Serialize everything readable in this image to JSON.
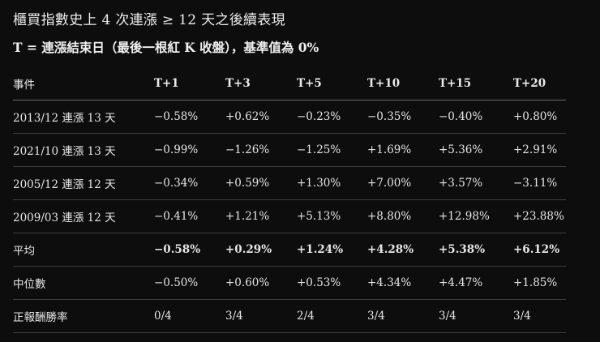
{
  "title": "櫃買指數史上 4 次連漲 ≥ 12 天之後續表現",
  "subtitle": "T = 連漲結束日（最後一根紅 K 收盤），基準值為 0%",
  "table": {
    "headers": [
      "事件",
      "T+1",
      "T+3",
      "T+5",
      "T+10",
      "T+15",
      "T+20"
    ],
    "rows": [
      {
        "event": "2013/12 連漲 13 天",
        "values": [
          "−0.58%",
          "+0.62%",
          "−0.23%",
          "−0.35%",
          "−0.40%",
          "+0.80%"
        ]
      },
      {
        "event": "2021/10 連漲 13 天",
        "values": [
          "−0.99%",
          "−1.26%",
          "−1.25%",
          "+1.69%",
          "+5.36%",
          "+2.91%"
        ]
      },
      {
        "event": "2005/12 連漲 12 天",
        "values": [
          "−0.34%",
          "+0.59%",
          "+1.30%",
          "+7.00%",
          "+3.57%",
          "−3.11%"
        ]
      },
      {
        "event": "2009/03 連漲 12 天",
        "values": [
          "−0.41%",
          "+1.21%",
          "+5.13%",
          "+8.80%",
          "+12.98%",
          "+23.88%"
        ]
      },
      {
        "event": "平均",
        "values": [
          "−0.58%",
          "+0.29%",
          "+1.24%",
          "+4.28%",
          "+5.38%",
          "+6.12%"
        ]
      },
      {
        "event": "中位數",
        "values": [
          "−0.50%",
          "+0.60%",
          "+0.53%",
          "+4.34%",
          "+4.47%",
          "+1.85%"
        ]
      },
      {
        "event": "正報酬勝率",
        "values": [
          "0/4",
          "3/4",
          "2/4",
          "3/4",
          "3/4",
          "3/4"
        ]
      }
    ]
  }
}
